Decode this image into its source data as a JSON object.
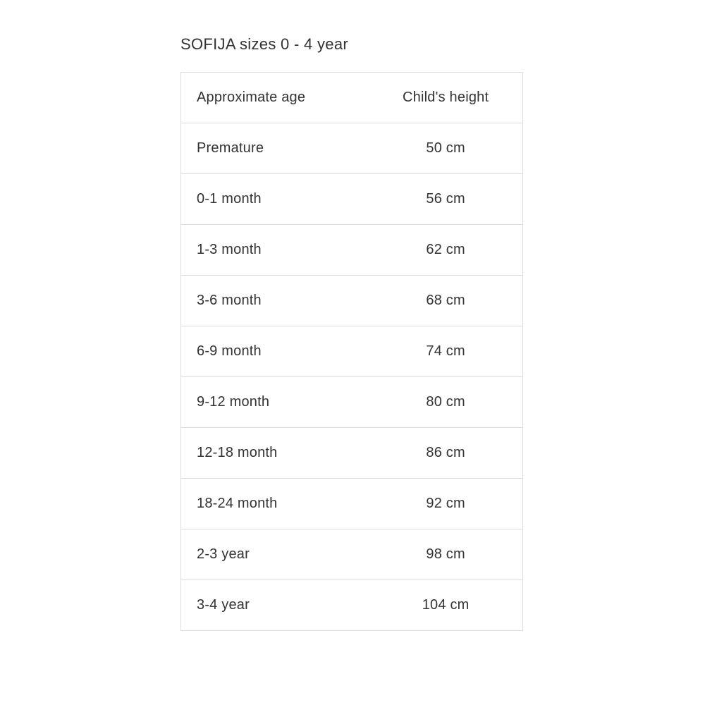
{
  "title": "SOFIJA sizes 0 - 4 year",
  "table": {
    "type": "table",
    "columns": [
      {
        "label": "Approximate age",
        "align": "left",
        "width": "55%"
      },
      {
        "label": "Child's height",
        "align": "center",
        "width": "45%"
      }
    ],
    "rows": [
      [
        "Premature",
        "50 cm"
      ],
      [
        "0-1 month",
        "56 cm"
      ],
      [
        "1-3 month",
        "62 cm"
      ],
      [
        "3-6 month",
        "68 cm"
      ],
      [
        "6-9 month",
        "74 cm"
      ],
      [
        "9-12 month",
        "80 cm"
      ],
      [
        "12-18 month",
        "86 cm"
      ],
      [
        "18-24 month",
        "92 cm"
      ],
      [
        "2-3 year",
        "98 cm"
      ],
      [
        "3-4 year",
        "104 cm"
      ]
    ],
    "border_color": "#dddddd",
    "background_color": "#ffffff",
    "text_color": "#333333",
    "font_size": 20,
    "cell_padding": "24px 22px"
  }
}
